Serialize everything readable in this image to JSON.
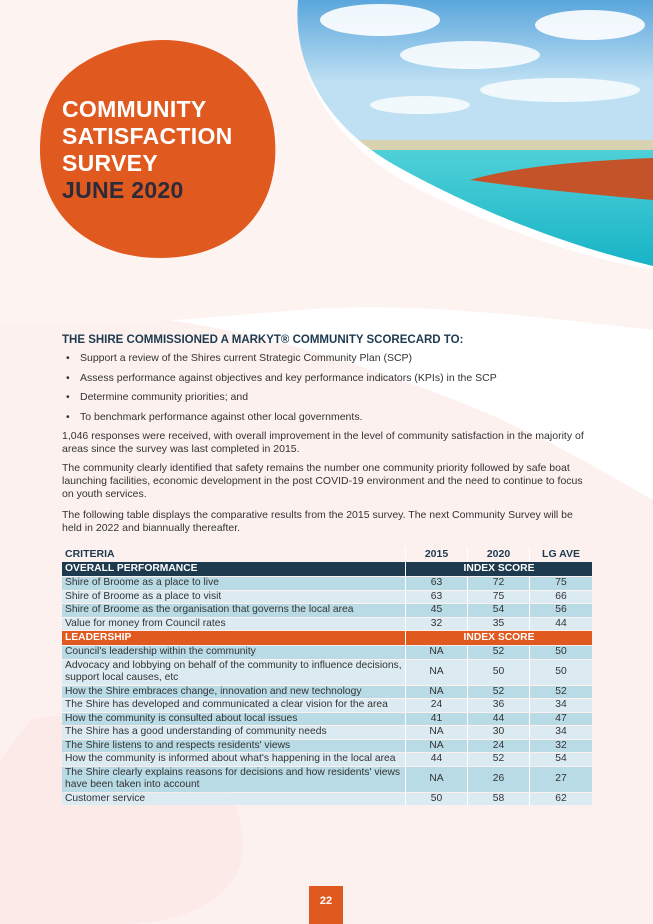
{
  "header": {
    "title_lines": [
      "COMMUNITY",
      "SATISFACTION",
      "SURVEY"
    ],
    "subtitle": "JUNE 2020"
  },
  "intro": {
    "heading": "THE SHIRE COMMISSIONED A MARKYT® COMMUNITY SCORECARD TO:",
    "bullets": [
      "Support a review of the Shires current Strategic Community Plan (SCP)",
      "Assess performance against objectives and key performance indicators (KPIs) in the SCP",
      "Determine community priorities; and",
      "To benchmark performance against other local governments."
    ],
    "paragraphs": [
      "1,046 responses were received, with overall improvement in the level of community satisfaction in the majority of areas since the survey was last completed in 2015.",
      "The community clearly identified that safety remains the number one community priority followed by safe boat launching facilities, economic development in the post COVID-19 environment and the need to continue to focus on youth services.",
      "The following table displays the comparative results from the 2015 survey. The next Community Survey will be held in 2022 and biannually thereafter."
    ]
  },
  "table": {
    "columns": [
      "CRITERIA",
      "2015",
      "2020",
      "LG AVE"
    ],
    "sections": [
      {
        "name": "OVERALL PERFORMANCE",
        "label": "INDEX SCORE",
        "rows": [
          [
            "Shire of Broome as a place to live",
            63,
            72,
            75
          ],
          [
            "Shire of Broome as a place to visit",
            63,
            75,
            66
          ],
          [
            "Shire of Broome as the organisation that governs the local area",
            45,
            54,
            56
          ],
          [
            "Value for money from Council rates",
            32,
            35,
            44
          ]
        ]
      },
      {
        "name": "LEADERSHIP",
        "label": "INDEX SCORE",
        "rows": [
          [
            "Council's leadership within the community",
            "NA",
            52,
            50
          ],
          [
            "Advocacy and lobbying on behalf of the community to influence decisions, support local causes, etc",
            "NA",
            50,
            50
          ],
          [
            "How the Shire embraces change, innovation and new technology",
            "NA",
            52,
            52
          ],
          [
            "The Shire has developed and communicated a clear vision for the area",
            24,
            36,
            34
          ],
          [
            "How the community is consulted about local issues",
            41,
            44,
            47
          ],
          [
            "The Shire has a good understanding of community needs",
            "NA",
            30,
            34
          ],
          [
            "The Shire listens to and respects residents' views",
            "NA",
            24,
            32
          ],
          [
            "How the community is informed about what's happening in the local area",
            44,
            52,
            54
          ],
          [
            "The Shire clearly explains reasons for decisions and how residents' views have been taken into account",
            "NA",
            26,
            27
          ],
          [
            "Customer service",
            50,
            58,
            62
          ]
        ]
      }
    ]
  },
  "footer": {
    "page_number": "22"
  }
}
